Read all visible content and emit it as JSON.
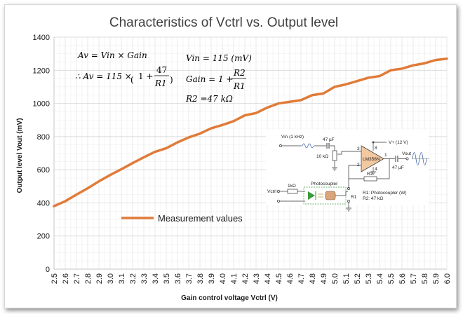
{
  "chart_data": {
    "type": "line",
    "title": "Characteristics of Vctrl vs. Output level",
    "xlabel": "Gain control voltage Vctrl (V)",
    "ylabel": "Output level Vout (mV)",
    "ylim": [
      0,
      1400
    ],
    "yticks": [
      0,
      200,
      400,
      600,
      800,
      1000,
      1200,
      1400
    ],
    "grid": true,
    "legend_position": "bottom-left",
    "line_color": "#e07b39",
    "series": [
      {
        "name": "Measurement values",
        "x": [
          "2.5",
          "2.6",
          "2.7",
          "2.8",
          "2.9",
          "3.0",
          "3.1",
          "3.2",
          "3.3",
          "3.4",
          "3.5",
          "3.6",
          "3.7",
          "3.8",
          "3.9",
          "4.0",
          "4.1",
          "4.2",
          "4.3",
          "4.4",
          "4.5",
          "4.6",
          "4.7",
          "4.8",
          "4.9",
          "5.0",
          "5.1",
          "5.2",
          "5.3",
          "5.4",
          "5.5",
          "5.6",
          "5.7",
          "5.8",
          "5.9",
          "6.0"
        ],
        "values": [
          380,
          410,
          450,
          488,
          530,
          568,
          603,
          640,
          675,
          708,
          730,
          765,
          795,
          818,
          850,
          870,
          893,
          928,
          942,
          975,
          1000,
          1010,
          1020,
          1050,
          1060,
          1100,
          1115,
          1135,
          1155,
          1165,
          1200,
          1210,
          1230,
          1242,
          1262,
          1270
        ]
      }
    ]
  },
  "equations": {
    "av_def": [
      "Av",
      " = ",
      "Vin",
      " × ",
      "Gain"
    ],
    "av_calc_prefix": "∴ Av = 115 ×",
    "av_calc_one": "1 +",
    "av_calc_num": "47",
    "av_calc_den": "R1",
    "vin": "Vin = 115 (mV)",
    "gain_prefix": "Gain = 1 +",
    "gain_num": "R2",
    "gain_den": "R1",
    "r2": "R2 =47 kΩ"
  },
  "schematic": {
    "vin_label": "Vin (1 kHz)",
    "cap1_label": "47 µF",
    "pot_label": "10 kΩ",
    "supply_label": "V+ (12 V)",
    "opamp_label": "LM358N",
    "pin3": "3",
    "pin2": "2",
    "pin8": "8",
    "pin1": "1",
    "pin4": "4",
    "vout_label": "Vout",
    "cap2_label": "47 µF",
    "r2_label": "R2",
    "res1k_label": "1kΩ",
    "photocoupler_label": "Photocoupler",
    "vctrl_label": "Vctrl",
    "r1_label": "R1",
    "note1": "R1: Photocoupler (W)",
    "note2": "R2: 47 kΩ"
  }
}
